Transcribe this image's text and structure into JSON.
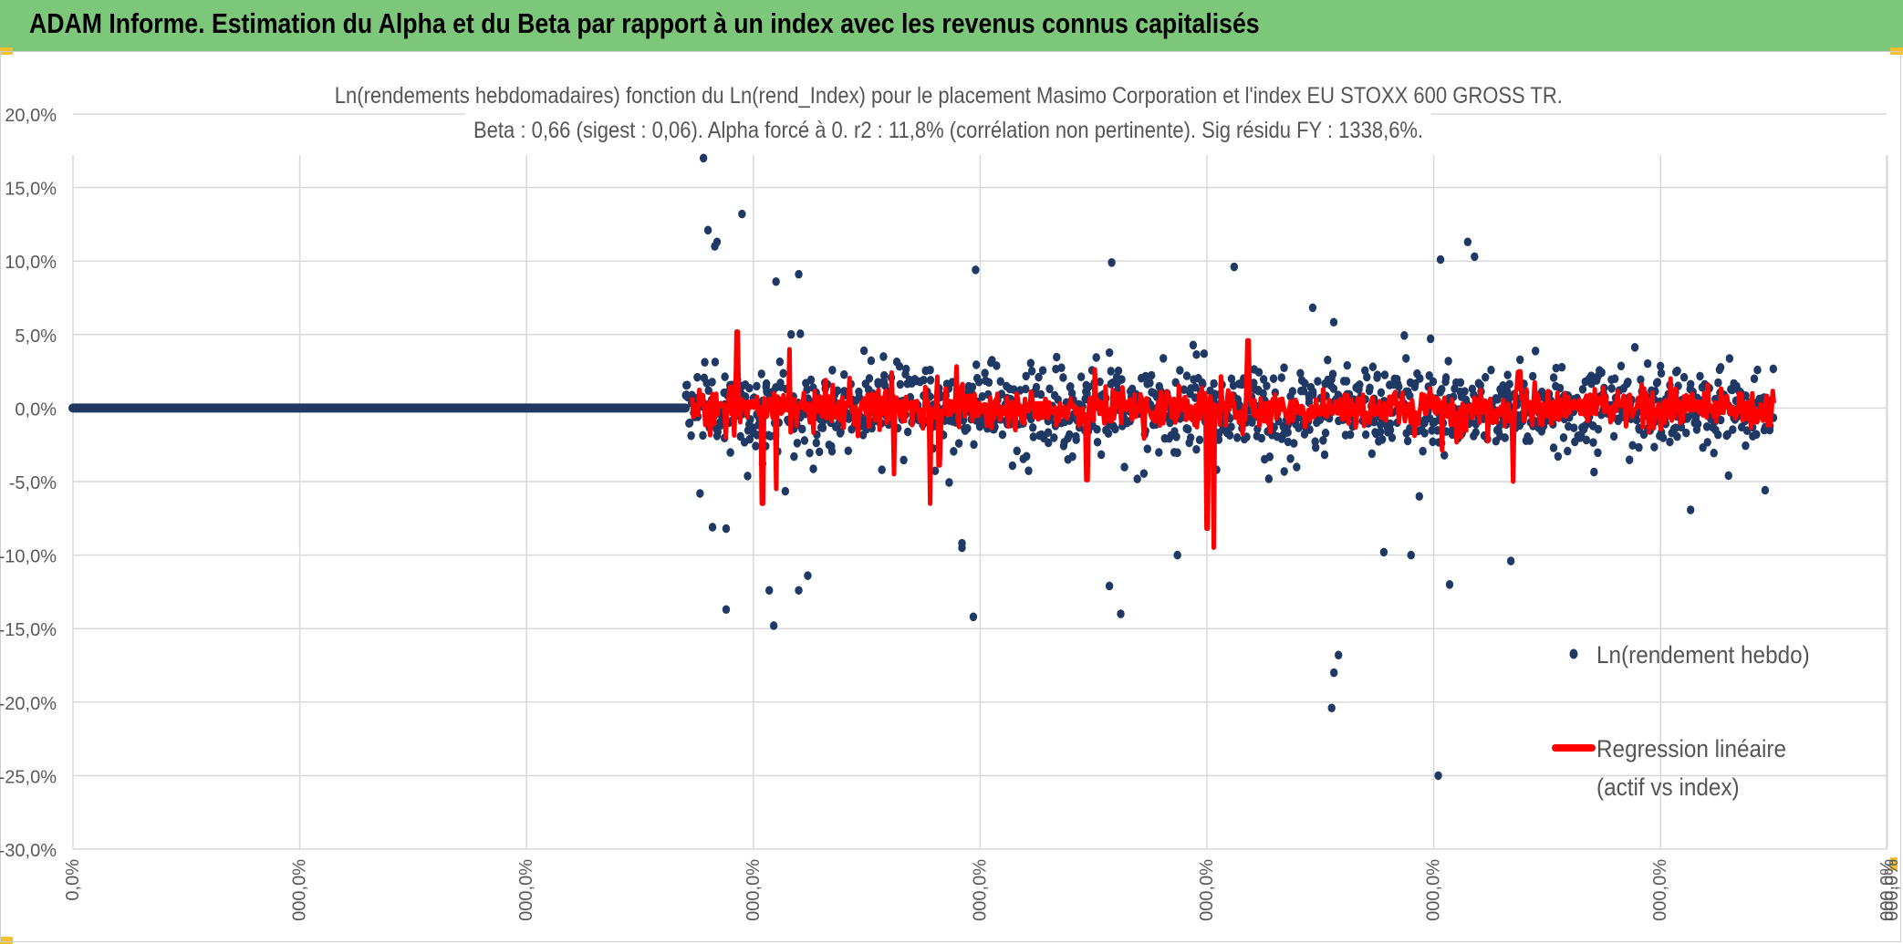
{
  "banner": {
    "title": "ADAM Informe. Estimation du Alpha et du Beta par rapport à un index avec les revenus connus capitalisés"
  },
  "colors": {
    "banner": "#7dc77a",
    "accent_corner": "#f2c02c",
    "scatter": "#1f3864",
    "regression": "#ff0000",
    "grid": "#d9d9d9",
    "text": "#595959"
  },
  "chart_data": {
    "type": "scatter",
    "title": "Ln(rendements hebdomadaires) fonction du Ln(rend_Index) pour le placement Masimo Corporation et l'index EU STOXX 600 GROSS TR.",
    "subtitle": "Beta : 0,66 (sigest : 0,06). Alpha forcé à 0. r2 : 11,8% (corrélation non pertinente). Sig résidu FY : 1338,6%.",
    "y_tick_labels": [
      "20,0%",
      "15,0%",
      "10,0%",
      "5,0%",
      "0,0%",
      "-5,0%",
      "-10,0%",
      "-15,0%",
      "-20,0%",
      "-25,0%",
      "-30,0%"
    ],
    "x_tick_labels": [
      "0,0%",
      "000,0%",
      "000,0%",
      "000,0%",
      "000,0%",
      "000,0%",
      "000,0%",
      "000,0%",
      "000,0%"
    ],
    "ylim": [
      -30,
      20
    ],
    "grid": true,
    "legend": {
      "position": "right",
      "entries": [
        {
          "name": "Ln(rendement hebdo)",
          "marker": "dot"
        },
        {
          "name": "Regression linéaire (actif vs index)",
          "lines": [
            "Regression linéaire",
            "(actif vs index)"
          ],
          "marker": "line"
        }
      ]
    },
    "series": [
      {
        "name": "Ln(rendement hebdo)",
        "kind": "scatter",
        "x_range": [
          0,
          7.5
        ],
        "description_flat": "dense constant zero returns from x=0 to about x=2.7 (index scale where each tick = 1 unit)",
        "flat_until": 2.7,
        "extreme_points": [
          [
            2.78,
            17.0
          ],
          [
            2.8,
            12.1
          ],
          [
            2.84,
            11.3
          ],
          [
            2.83,
            11.0
          ],
          [
            2.95,
            13.2
          ],
          [
            3.1,
            8.6
          ],
          [
            3.2,
            9.1
          ],
          [
            3.98,
            9.4
          ],
          [
            4.58,
            9.9
          ],
          [
            5.12,
            9.6
          ],
          [
            6.03,
            10.1
          ],
          [
            6.15,
            11.3
          ],
          [
            6.18,
            10.3
          ],
          [
            2.88,
            -13.7
          ],
          [
            3.07,
            -12.4
          ],
          [
            3.09,
            -14.8
          ],
          [
            3.2,
            -12.4
          ],
          [
            3.24,
            -11.4
          ],
          [
            3.97,
            -14.2
          ],
          [
            4.57,
            -12.1
          ],
          [
            4.62,
            -14.0
          ],
          [
            4.87,
            -10.0
          ],
          [
            5.78,
            -9.8
          ],
          [
            5.56,
            -18.0
          ],
          [
            5.55,
            -20.4
          ],
          [
            5.58,
            -16.8
          ],
          [
            6.07,
            -12.0
          ],
          [
            6.34,
            -10.4
          ],
          [
            5.9,
            -10.0
          ],
          [
            3.92,
            -9.5
          ],
          [
            3.92,
            -9.2
          ],
          [
            2.82,
            -8.1
          ],
          [
            2.88,
            -8.2
          ],
          [
            6.02,
            -25.0
          ]
        ],
        "bulk_y_range": [
          -8,
          8
        ],
        "bulk_x_range": [
          2.7,
          7.5
        ]
      },
      {
        "name": "Regression linéaire (actif vs index)",
        "kind": "line",
        "x_range": [
          2.7,
          7.5
        ],
        "beta": 0.66,
        "typical_amplitude": [
          -3,
          3
        ],
        "spikes": [
          [
            2.93,
            5.2
          ],
          [
            3.04,
            -6.5
          ],
          [
            3.1,
            -5.5
          ],
          [
            3.16,
            4.0
          ],
          [
            3.62,
            -4.5
          ],
          [
            3.78,
            -6.5
          ],
          [
            3.82,
            -3.9
          ],
          [
            4.47,
            -4.9
          ],
          [
            5.0,
            -8.2
          ],
          [
            5.03,
            -9.5
          ],
          [
            5.18,
            4.6
          ],
          [
            6.35,
            -5.0
          ],
          [
            6.38,
            2.5
          ]
        ]
      }
    ]
  }
}
